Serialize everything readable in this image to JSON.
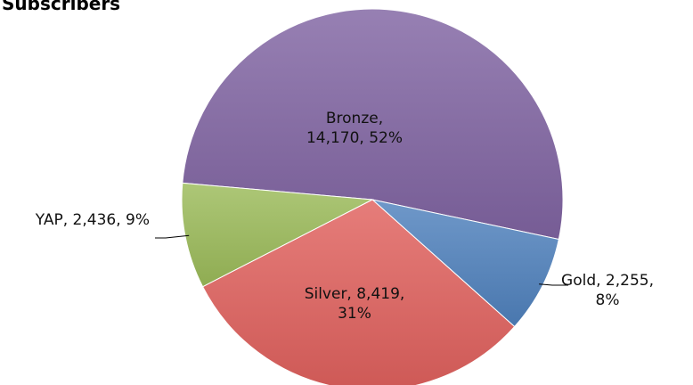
{
  "chart_data": {
    "type": "pie",
    "title": "Subscribers",
    "slices": [
      {
        "name": "Bronze",
        "value": 14170,
        "percent": 52,
        "color": "#8064A2",
        "label_lines": [
          "Bronze,",
          "14,170, 52%"
        ]
      },
      {
        "name": "Gold",
        "value": 2255,
        "percent": 8,
        "color": "#4F81BD",
        "label_lines": [
          "Gold, 2,255,",
          "8%"
        ]
      },
      {
        "name": "Silver",
        "value": 8419,
        "percent": 31,
        "color": "#E0615D",
        "label_lines": [
          "Silver, 8,419,",
          "31%"
        ]
      },
      {
        "name": "YAP",
        "value": 2436,
        "percent": 9,
        "color": "#9BBB59",
        "label_lines": [
          "YAP, 2,436, 9%"
        ]
      }
    ]
  }
}
